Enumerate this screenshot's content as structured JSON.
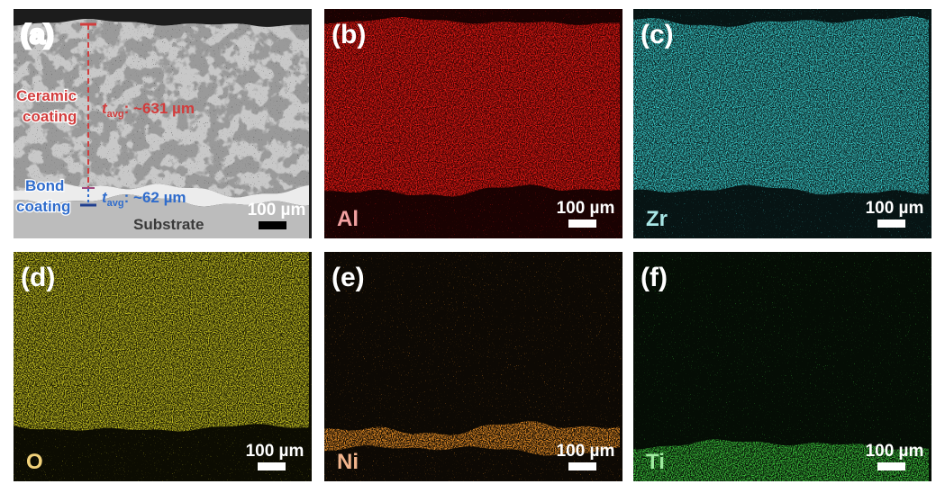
{
  "panels": [
    {
      "label": "(a)",
      "scale_bar": "100 µm",
      "ceramic_label": [
        "Ceramic",
        "coating"
      ],
      "ceramic_thickness": {
        "symbol": "t",
        "subscript": "avg",
        "value": ": ~631 µm"
      },
      "bond_label": [
        "Bond",
        "coating"
      ],
      "bond_thickness": {
        "symbol": "t",
        "subscript": "avg",
        "value": ": ~62 µm"
      },
      "substrate": "Substrate"
    },
    {
      "label": "(b)",
      "element": "Al",
      "scale_bar": "100 µm"
    },
    {
      "label": "(c)",
      "element": "Zr",
      "scale_bar": "100 µm"
    },
    {
      "label": "(d)",
      "element": "O",
      "scale_bar": "100 µm"
    },
    {
      "label": "(e)",
      "element": "Ni",
      "scale_bar": "100 µm"
    },
    {
      "label": "(f)",
      "element": "Ti",
      "scale_bar": "100 µm"
    }
  ]
}
